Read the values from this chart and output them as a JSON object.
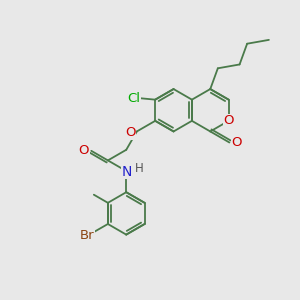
{
  "background_color": "#e8e8e8",
  "bond_color": "#4a7a4a",
  "figsize": [
    3.0,
    3.0
  ],
  "dpi": 100,
  "atom_colors": {
    "O": "#cc0000",
    "N": "#2222cc",
    "Cl": "#00aa00",
    "Br": "#8B4513",
    "H": "#555555"
  },
  "lw": 1.3,
  "fs": 8.5
}
